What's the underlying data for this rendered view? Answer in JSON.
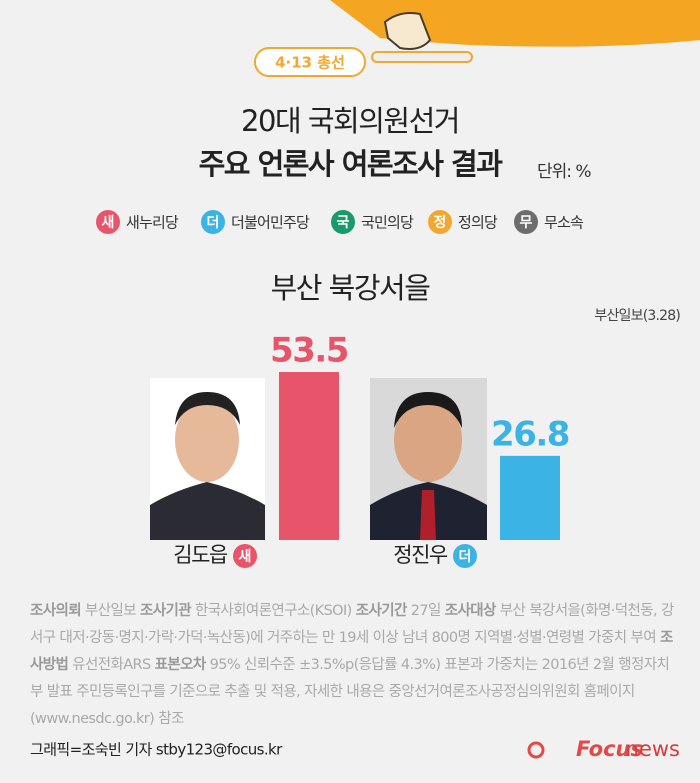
{
  "chart_data": {
    "type": "bar",
    "badge": "4·13 총선",
    "title": "20대 국회의원선거",
    "subtitle": "주요 언론사 여론조사 결과",
    "unit": "단위: %",
    "legend": [
      [
        "새",
        "새누리당",
        "#e8556b"
      ],
      [
        "더",
        "더불어민주당",
        "#3bb4e5"
      ],
      [
        "국",
        "국민의당",
        "#1a9a6c"
      ],
      [
        "정",
        "정의당",
        "#f0a830"
      ],
      [
        "무",
        "무소속",
        "#6d6d6d"
      ]
    ],
    "region": "부산 북강서을",
    "source": "부산일보(3.28)",
    "categories": [
      "김도읍",
      "정진우"
    ],
    "tags": [
      "새",
      "더"
    ],
    "colors": [
      "#e8556b",
      "#3bb4e5"
    ],
    "values": [
      53.5,
      26.8
    ]
  },
  "footnote": [
    [
      "조사의뢰",
      "부산일보"
    ],
    [
      "조사기관",
      "한국사회여론연구소(KSOI)"
    ],
    [
      "조사기간",
      "27일"
    ],
    [
      "조사대상",
      "부산 북강서을(화명·덕천동, 강서구 대저·강동·명지·가락·가덕·녹산동)에 거주하는 만 19세 이상 남녀 800명 지역별·성별·연령별 가중치 부여"
    ],
    [
      "조사방법",
      "유선전화ARS"
    ],
    [
      "표본오차",
      "95% 신뢰수준 ±3.5%p(응답률 4.3%)  표본과 가중치는 2016년 2월 행정자치부 발표 주민등록인구를 기준으로 추출 및 적용, 자세한 내용은 중앙선거여론조사공정심의위원회 홈페이지(www.nesdc.go.kr) 참조"
    ]
  ],
  "credit": "그래픽=조숙빈 기자 stby123@focus.kr",
  "logo": [
    "Focus",
    "news"
  ]
}
